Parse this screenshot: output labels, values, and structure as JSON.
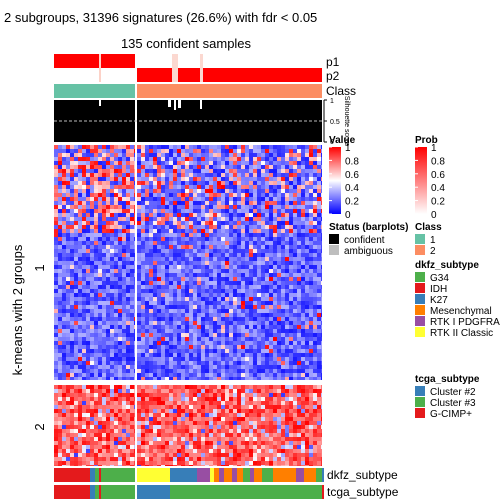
{
  "chart_data": {
    "type": "heatmap",
    "title": "2 subgroups, 31396 signatures (26.6%) with fdr < 0.05",
    "subtitle": "135 confident samples",
    "row_title": "k-means with 2 groups",
    "row_groups": [
      "1",
      "2"
    ],
    "column_groups": [
      "1",
      "2"
    ],
    "annotations_top": [
      "p1",
      "p2",
      "Class"
    ],
    "silhouette": {
      "label": "Silhouette score",
      "ticks": [
        "1",
        "0.5",
        "0"
      ],
      "range": [
        0,
        1
      ]
    },
    "annotations_bottom": [
      "dkfz_subtype",
      "tcga_subtype"
    ],
    "legends": {
      "value": {
        "title": "Value",
        "ticks": [
          "1",
          "0.8",
          "0.6",
          "0.4",
          "0.2",
          "0"
        ],
        "colors": [
          "#0000ff",
          "#ffffff",
          "#ff0000"
        ]
      },
      "prob": {
        "title": "Prob",
        "ticks": [
          "1",
          "0.8",
          "0.6",
          "0.4",
          "0.2",
          "0"
        ],
        "colors": [
          "#ffffff",
          "#ff0000"
        ]
      },
      "status": {
        "title": "Status (barplots)",
        "items": [
          {
            "label": "confident",
            "color": "#000000"
          },
          {
            "label": "ambiguous",
            "color": "#bebebe"
          }
        ]
      },
      "class": {
        "title": "Class",
        "items": [
          {
            "label": "1",
            "color": "#66c2a5"
          },
          {
            "label": "2",
            "color": "#fc8d62"
          }
        ]
      },
      "dkfz_subtype": {
        "title": "dkfz_subtype",
        "items": [
          {
            "label": "G34",
            "color": "#4daf4a"
          },
          {
            "label": "IDH",
            "color": "#e41a1c"
          },
          {
            "label": "K27",
            "color": "#377eb8"
          },
          {
            "label": "Mesenchymal",
            "color": "#ff7f00"
          },
          {
            "label": "RTK I PDGFRA",
            "color": "#984ea3"
          },
          {
            "label": "RTK II Classic",
            "color": "#ffff33"
          }
        ]
      },
      "tcga_subtype": {
        "title": "tcga_subtype",
        "items": [
          {
            "label": "Cluster #2",
            "color": "#377eb8"
          },
          {
            "label": "Cluster #3",
            "color": "#4daf4a"
          },
          {
            "label": "G-CIMP+",
            "color": "#e41a1c"
          }
        ]
      }
    }
  }
}
